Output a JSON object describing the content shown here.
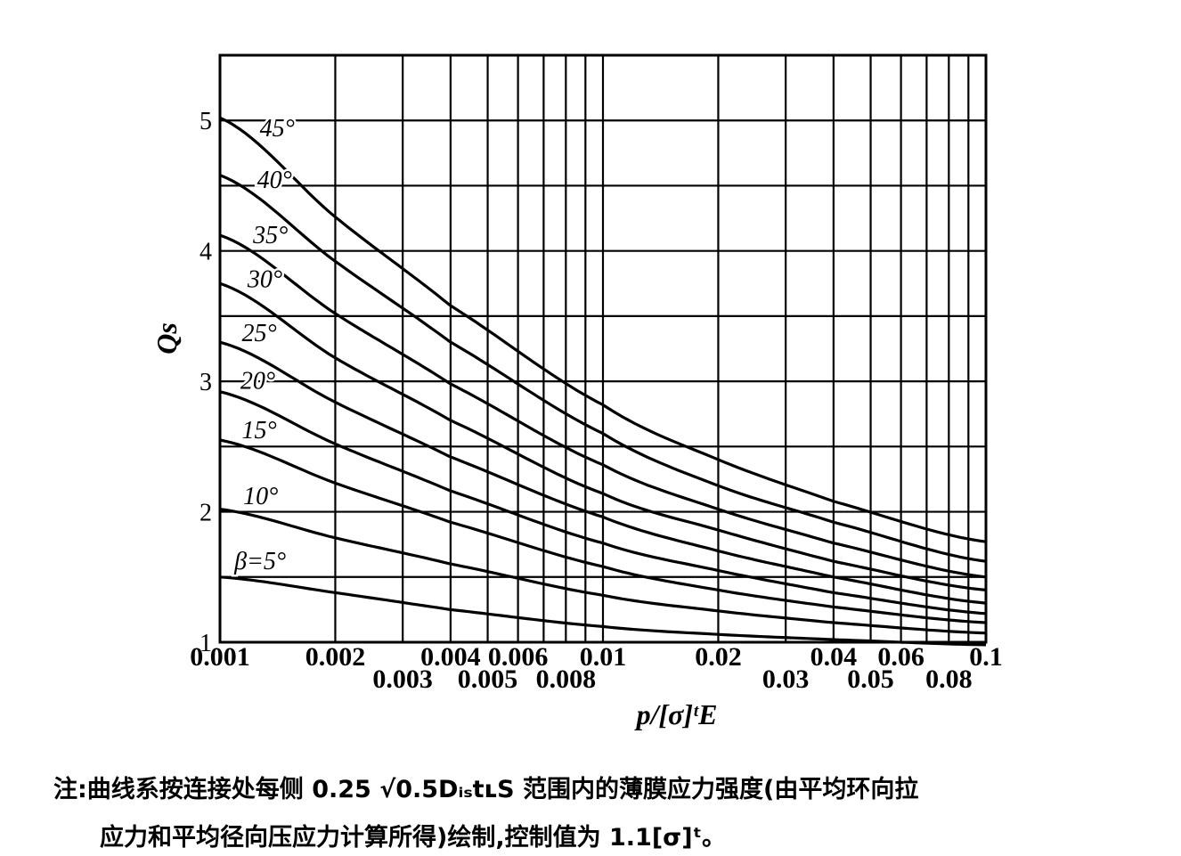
{
  "chart_data": {
    "type": "line",
    "title": "",
    "xlabel": "p/[σ]ᵗE",
    "ylabel": "Qs",
    "x_scale": "log",
    "xlim": [
      0.001,
      0.1
    ],
    "ylim": [
      1,
      5.5
    ],
    "grid": true,
    "x_ticks_top_row": [
      "0.001",
      "0.002",
      "0.004",
      "0.006",
      "0.01",
      "0.02",
      "0.04",
      "0.06",
      "0.1"
    ],
    "x_ticks_bottom_row": [
      "0.003",
      "0.005",
      "0.008",
      "0.03",
      "0.05",
      "0.08"
    ],
    "y_ticks": [
      "1",
      "2",
      "3",
      "4",
      "5"
    ],
    "x": [
      0.001,
      0.002,
      0.004,
      0.01,
      0.02,
      0.04,
      0.1
    ],
    "series": [
      {
        "name": "β=5°",
        "values": [
          1.5,
          1.38,
          1.25,
          1.12,
          1.06,
          1.02,
          0.98
        ]
      },
      {
        "name": "10°",
        "values": [
          2.02,
          1.8,
          1.6,
          1.36,
          1.24,
          1.15,
          1.07
        ]
      },
      {
        "name": "15°",
        "values": [
          2.55,
          2.22,
          1.92,
          1.58,
          1.4,
          1.27,
          1.15
        ]
      },
      {
        "name": "20°",
        "values": [
          2.92,
          2.52,
          2.16,
          1.76,
          1.55,
          1.38,
          1.22
        ]
      },
      {
        "name": "25°",
        "values": [
          3.3,
          2.84,
          2.42,
          1.96,
          1.7,
          1.5,
          1.3
        ]
      },
      {
        "name": "30°",
        "values": [
          3.75,
          3.18,
          2.7,
          2.14,
          1.86,
          1.62,
          1.4
        ]
      },
      {
        "name": "35°",
        "values": [
          4.12,
          3.52,
          2.98,
          2.36,
          2.02,
          1.76,
          1.5
        ]
      },
      {
        "name": "40°",
        "values": [
          4.58,
          3.92,
          3.3,
          2.6,
          2.2,
          1.92,
          1.62
        ]
      },
      {
        "name": "45°",
        "values": [
          5.02,
          4.26,
          3.58,
          2.82,
          2.4,
          2.08,
          1.77
        ]
      }
    ]
  },
  "note": {
    "line1": "注:曲线系按连接处每侧 0.25 √0.5DᵢₛtʟS 范围内的薄膜应力强度(由平均环向拉",
    "line2": "应力和平均径向压应力计算所得)绘制,控制值为 1.1[σ]ᵗ。"
  }
}
